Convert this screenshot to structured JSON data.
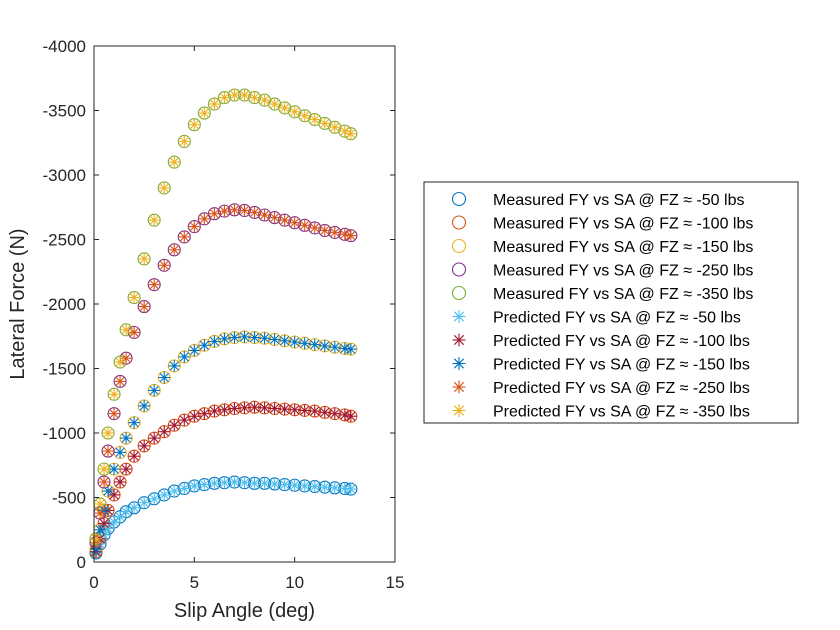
{
  "chart_data": {
    "type": "scatter",
    "xlabel": "Slip Angle (deg)",
    "ylabel": "Lateral Force (N)",
    "xlim": [
      0,
      15
    ],
    "ylim": [
      -4000,
      0
    ],
    "y_direction": "reversed",
    "grid": false,
    "legend_placement": "right, outside axes",
    "x_ticks": [
      {
        "value": 0,
        "label": "0"
      },
      {
        "value": 5,
        "label": "5"
      },
      {
        "value": 10,
        "label": "10"
      },
      {
        "value": 15,
        "label": "15"
      }
    ],
    "y_ticks": [
      {
        "value": 0,
        "label": "0"
      },
      {
        "value": -500,
        "label": "-500"
      },
      {
        "value": -1000,
        "label": "-1000"
      },
      {
        "value": -1500,
        "label": "-1500"
      },
      {
        "value": -2000,
        "label": "-2000"
      },
      {
        "value": -2500,
        "label": "-2500"
      },
      {
        "value": -3000,
        "label": "-3000"
      },
      {
        "value": -3500,
        "label": "-3500"
      },
      {
        "value": -4000,
        "label": "-4000"
      }
    ],
    "series": [
      {
        "name": "Measured FY vs SA @ FZ ≈ -50 lbs",
        "marker": "circle",
        "color": "#0072BD",
        "x": [
          0.1,
          0.3,
          0.5,
          0.7,
          1.0,
          1.3,
          1.6,
          2.0,
          2.5,
          3.0,
          3.5,
          4.0,
          4.5,
          5.0,
          5.5,
          6.0,
          6.5,
          7.0,
          7.5,
          8.0,
          8.5,
          9.0,
          9.5,
          10.0,
          10.5,
          11.0,
          11.5,
          12.0,
          12.5,
          12.8
        ],
        "y": [
          -70,
          -140,
          -210,
          -260,
          -310,
          -350,
          -390,
          -420,
          -460,
          -490,
          -520,
          -550,
          -570,
          -590,
          -600,
          -610,
          -615,
          -620,
          -615,
          -610,
          -610,
          -605,
          -600,
          -595,
          -590,
          -585,
          -580,
          -575,
          -570,
          -565
        ]
      },
      {
        "name": "Measured FY vs SA @ FZ ≈ -100 lbs",
        "marker": "circle",
        "color": "#D95319",
        "x": [
          0.1,
          0.3,
          0.5,
          0.7,
          1.0,
          1.3,
          1.6,
          2.0,
          2.5,
          3.0,
          3.5,
          4.0,
          4.5,
          5.0,
          5.5,
          6.0,
          6.5,
          7.0,
          7.5,
          8.0,
          8.5,
          9.0,
          9.5,
          10.0,
          10.5,
          11.0,
          11.5,
          12.0,
          12.5,
          12.8
        ],
        "y": [
          -80,
          -180,
          -300,
          -400,
          -520,
          -620,
          -720,
          -820,
          -900,
          -960,
          -1010,
          -1060,
          -1100,
          -1130,
          -1150,
          -1170,
          -1180,
          -1190,
          -1195,
          -1200,
          -1195,
          -1190,
          -1185,
          -1180,
          -1175,
          -1170,
          -1160,
          -1150,
          -1140,
          -1130
        ]
      },
      {
        "name": "Measured FY vs SA @ FZ ≈ -150 lbs",
        "marker": "circle",
        "color": "#EDB120",
        "x": [
          0.1,
          0.3,
          0.5,
          0.7,
          1.0,
          1.3,
          1.6,
          2.0,
          2.5,
          3.0,
          3.5,
          4.0,
          4.5,
          5.0,
          5.5,
          6.0,
          6.5,
          7.0,
          7.5,
          8.0,
          8.5,
          9.0,
          9.5,
          10.0,
          10.5,
          11.0,
          11.5,
          12.0,
          12.5,
          12.8
        ],
        "y": [
          -100,
          -250,
          -400,
          -550,
          -720,
          -850,
          -960,
          -1080,
          -1210,
          -1330,
          -1430,
          -1520,
          -1590,
          -1640,
          -1680,
          -1710,
          -1730,
          -1740,
          -1745,
          -1740,
          -1735,
          -1725,
          -1715,
          -1705,
          -1695,
          -1685,
          -1675,
          -1665,
          -1655,
          -1650
        ]
      },
      {
        "name": "Measured FY vs SA @ FZ ≈ -250 lbs",
        "marker": "circle",
        "color": "#7E2F8E",
        "x": [
          0.1,
          0.3,
          0.5,
          0.7,
          1.0,
          1.3,
          1.6,
          2.0,
          2.5,
          3.0,
          3.5,
          4.0,
          4.5,
          5.0,
          5.5,
          6.0,
          6.5,
          7.0,
          7.5,
          8.0,
          8.5,
          9.0,
          9.5,
          10.0,
          10.5,
          11.0,
          11.5,
          12.0,
          12.5,
          12.8
        ],
        "y": [
          -150,
          -380,
          -620,
          -860,
          -1150,
          -1400,
          -1580,
          -1780,
          -1980,
          -2150,
          -2300,
          -2420,
          -2520,
          -2600,
          -2660,
          -2700,
          -2720,
          -2730,
          -2725,
          -2710,
          -2690,
          -2670,
          -2650,
          -2630,
          -2610,
          -2590,
          -2570,
          -2555,
          -2540,
          -2530
        ]
      },
      {
        "name": "Measured FY vs SA @ FZ ≈ -350 lbs",
        "marker": "circle",
        "color": "#77AC30",
        "x": [
          0.1,
          0.3,
          0.5,
          0.7,
          1.0,
          1.3,
          1.6,
          2.0,
          2.5,
          3.0,
          3.5,
          4.0,
          4.5,
          5.0,
          5.5,
          6.0,
          6.5,
          7.0,
          7.5,
          8.0,
          8.5,
          9.0,
          9.5,
          10.0,
          10.5,
          11.0,
          11.5,
          12.0,
          12.5,
          12.8
        ],
        "y": [
          -180,
          -450,
          -720,
          -1000,
          -1300,
          -1550,
          -1800,
          -2050,
          -2350,
          -2650,
          -2900,
          -3100,
          -3260,
          -3390,
          -3480,
          -3550,
          -3600,
          -3620,
          -3620,
          -3600,
          -3580,
          -3550,
          -3520,
          -3490,
          -3460,
          -3430,
          -3400,
          -3370,
          -3340,
          -3320
        ]
      },
      {
        "name": "Predicted FY vs SA @ FZ ≈ -50 lbs",
        "marker": "asterisk",
        "color": "#4DBEEE",
        "x": [
          0.1,
          0.3,
          0.5,
          0.7,
          1.0,
          1.3,
          1.6,
          2.0,
          2.5,
          3.0,
          3.5,
          4.0,
          4.5,
          5.0,
          5.5,
          6.0,
          6.5,
          7.0,
          7.5,
          8.0,
          8.5,
          9.0,
          9.5,
          10.0,
          10.5,
          11.0,
          11.5,
          12.0,
          12.5,
          12.8
        ],
        "y": [
          -70,
          -140,
          -210,
          -260,
          -310,
          -350,
          -390,
          -420,
          -460,
          -490,
          -520,
          -550,
          -570,
          -590,
          -600,
          -610,
          -615,
          -620,
          -615,
          -610,
          -610,
          -605,
          -600,
          -595,
          -590,
          -585,
          -580,
          -575,
          -570,
          -565
        ]
      },
      {
        "name": "Predicted FY vs SA @ FZ ≈ -100 lbs",
        "marker": "asterisk",
        "color": "#A2142F",
        "x": [
          0.1,
          0.3,
          0.5,
          0.7,
          1.0,
          1.3,
          1.6,
          2.0,
          2.5,
          3.0,
          3.5,
          4.0,
          4.5,
          5.0,
          5.5,
          6.0,
          6.5,
          7.0,
          7.5,
          8.0,
          8.5,
          9.0,
          9.5,
          10.0,
          10.5,
          11.0,
          11.5,
          12.0,
          12.5,
          12.8
        ],
        "y": [
          -80,
          -180,
          -300,
          -400,
          -520,
          -620,
          -720,
          -820,
          -900,
          -960,
          -1010,
          -1060,
          -1100,
          -1130,
          -1150,
          -1170,
          -1180,
          -1190,
          -1195,
          -1200,
          -1195,
          -1190,
          -1185,
          -1180,
          -1175,
          -1170,
          -1160,
          -1150,
          -1140,
          -1130
        ]
      },
      {
        "name": "Predicted FY vs SA @ FZ ≈ -150 lbs",
        "marker": "asterisk",
        "color": "#0072BD",
        "x": [
          0.1,
          0.3,
          0.5,
          0.7,
          1.0,
          1.3,
          1.6,
          2.0,
          2.5,
          3.0,
          3.5,
          4.0,
          4.5,
          5.0,
          5.5,
          6.0,
          6.5,
          7.0,
          7.5,
          8.0,
          8.5,
          9.0,
          9.5,
          10.0,
          10.5,
          11.0,
          11.5,
          12.0,
          12.5,
          12.8
        ],
        "y": [
          -100,
          -250,
          -400,
          -550,
          -720,
          -850,
          -960,
          -1080,
          -1210,
          -1330,
          -1430,
          -1520,
          -1590,
          -1640,
          -1680,
          -1710,
          -1730,
          -1740,
          -1745,
          -1740,
          -1735,
          -1725,
          -1715,
          -1705,
          -1695,
          -1685,
          -1675,
          -1665,
          -1655,
          -1650
        ]
      },
      {
        "name": "Predicted FY vs SA @ FZ ≈ -250 lbs",
        "marker": "asterisk",
        "color": "#D95319",
        "x": [
          0.1,
          0.3,
          0.5,
          0.7,
          1.0,
          1.3,
          1.6,
          2.0,
          2.5,
          3.0,
          3.5,
          4.0,
          4.5,
          5.0,
          5.5,
          6.0,
          6.5,
          7.0,
          7.5,
          8.0,
          8.5,
          9.0,
          9.5,
          10.0,
          10.5,
          11.0,
          11.5,
          12.0,
          12.5,
          12.8
        ],
        "y": [
          -150,
          -380,
          -620,
          -860,
          -1150,
          -1400,
          -1580,
          -1780,
          -1980,
          -2150,
          -2300,
          -2420,
          -2520,
          -2600,
          -2660,
          -2700,
          -2720,
          -2730,
          -2725,
          -2710,
          -2690,
          -2670,
          -2650,
          -2630,
          -2610,
          -2590,
          -2570,
          -2555,
          -2540,
          -2530
        ]
      },
      {
        "name": "Predicted FY vs SA @ FZ ≈ -350 lbs",
        "marker": "asterisk",
        "color": "#EDB120",
        "x": [
          0.1,
          0.3,
          0.5,
          0.7,
          1.0,
          1.3,
          1.6,
          2.0,
          2.5,
          3.0,
          3.5,
          4.0,
          4.5,
          5.0,
          5.5,
          6.0,
          6.5,
          7.0,
          7.5,
          8.0,
          8.5,
          9.0,
          9.5,
          10.0,
          10.5,
          11.0,
          11.5,
          12.0,
          12.5,
          12.8
        ],
        "y": [
          -180,
          -450,
          -720,
          -1000,
          -1300,
          -1550,
          -1800,
          -2050,
          -2350,
          -2650,
          -2900,
          -3100,
          -3260,
          -3390,
          -3480,
          -3550,
          -3600,
          -3620,
          -3620,
          -3600,
          -3580,
          -3550,
          -3520,
          -3490,
          -3460,
          -3430,
          -3400,
          -3370,
          -3340,
          -3320
        ]
      }
    ]
  }
}
